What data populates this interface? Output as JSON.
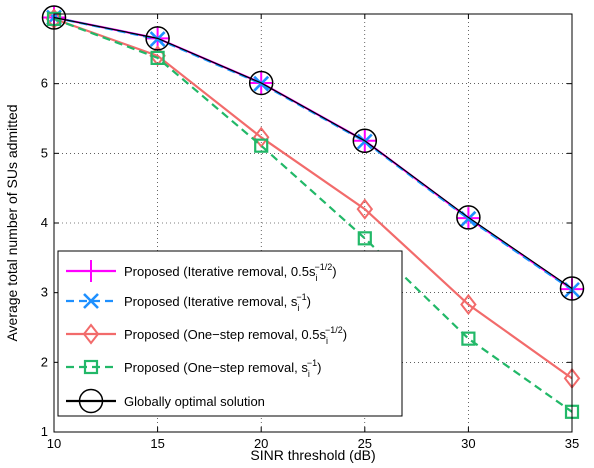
{
  "chart_data": {
    "type": "line",
    "title": "",
    "xlabel": "SINR threshold (dB)",
    "ylabel": "Average total number of SUs admitted",
    "x": [
      10,
      15,
      20,
      25,
      30,
      35
    ],
    "xlim": [
      10,
      35
    ],
    "ylim": [
      1,
      7
    ],
    "xticks": [
      "10",
      "15",
      "20",
      "25",
      "30",
      "35"
    ],
    "yticks": [
      "1",
      "2",
      "3",
      "4",
      "5",
      "6"
    ],
    "grid": true,
    "legend_position": "bottom-left",
    "series": [
      {
        "name_main": "Proposed (Iterative removal, 0.5s",
        "name_sub": "i",
        "name_sup": "−1/2",
        "name_end": ")",
        "marker": "plus",
        "color": "#ff00ff",
        "dash": "solid",
        "values": [
          6.95,
          6.65,
          6.01,
          5.18,
          4.07,
          3.05
        ]
      },
      {
        "name_main": "Proposed (Iterative removal, s",
        "name_sub": "i",
        "name_sup": "−1",
        "name_end": ")",
        "marker": "x",
        "color": "#1e90ff",
        "dash": "dashed",
        "values": [
          6.95,
          6.64,
          6.0,
          5.17,
          4.06,
          3.04
        ]
      },
      {
        "name_main": "Proposed (One−step removal, 0.5s",
        "name_sub": "i",
        "name_sup": "−1/2",
        "name_end": ")",
        "marker": "diamond",
        "color": "#f26b6b",
        "dash": "solid",
        "values": [
          6.93,
          6.4,
          5.23,
          4.2,
          2.83,
          1.77
        ]
      },
      {
        "name_main": "Proposed (One−step removal, s",
        "name_sub": "i",
        "name_sup": "−1",
        "name_end": ")",
        "marker": "square",
        "color": "#22b868",
        "dash": "dashed",
        "values": [
          6.93,
          6.37,
          5.11,
          3.78,
          2.34,
          1.29
        ]
      },
      {
        "name_main": "Globally optimal solution",
        "name_sub": "",
        "name_sup": "",
        "name_end": "",
        "marker": "circle",
        "color": "#000000",
        "dash": "solid",
        "values": [
          6.95,
          6.65,
          6.01,
          5.18,
          4.08,
          3.06
        ]
      }
    ]
  }
}
